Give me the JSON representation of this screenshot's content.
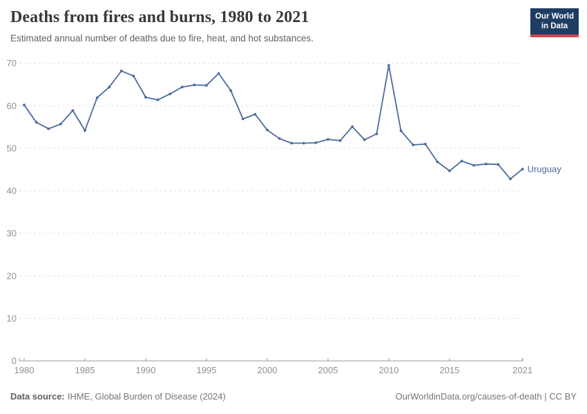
{
  "header": {
    "title": "Deaths from fires and burns, 1980 to 2021",
    "subtitle": "Estimated annual number of deaths due to fire, heat, and hot substances.",
    "logo": {
      "line1": "Our World",
      "line2": "in Data"
    }
  },
  "footer": {
    "source_label": "Data source:",
    "source_value": "IHME, Global Burden of Disease (2024)",
    "attribution": "OurWorldinData.org/causes-of-death | CC BY"
  },
  "colors": {
    "line": "#4c6a9c",
    "grid": "#e0e0e0",
    "axis": "#999999",
    "tick_label": "#8f8f8f",
    "logo_bg": "#1d3d63",
    "logo_accent": "#d8414a"
  },
  "chart_data": {
    "type": "line",
    "title": "Deaths from fires and burns, 1980 to 2021",
    "subtitle": "Estimated annual number of deaths due to fire, heat, and hot substances.",
    "xlabel": "",
    "ylabel": "",
    "xlim": [
      1980,
      2021
    ],
    "ylim": [
      0,
      70
    ],
    "x_ticks": [
      1980,
      1985,
      1990,
      1995,
      2000,
      2005,
      2010,
      2015,
      2021
    ],
    "y_ticks": [
      0,
      10,
      20,
      30,
      40,
      50,
      60,
      70
    ],
    "grid": "horizontal-dashed",
    "legend_position": "end-of-line-label",
    "series": [
      {
        "name": "Uruguay",
        "x": [
          1980,
          1981,
          1982,
          1983,
          1984,
          1985,
          1986,
          1987,
          1988,
          1989,
          1990,
          1991,
          1992,
          1993,
          1994,
          1995,
          1996,
          1997,
          1998,
          1999,
          2000,
          2001,
          2002,
          2003,
          2004,
          2005,
          2006,
          2007,
          2008,
          2009,
          2010,
          2011,
          2012,
          2013,
          2014,
          2015,
          2016,
          2017,
          2018,
          2019,
          2020,
          2021
        ],
        "values": [
          60.2,
          56.1,
          54.6,
          55.7,
          58.9,
          54.2,
          61.9,
          64.4,
          68.2,
          67.0,
          62.0,
          61.4,
          62.8,
          64.4,
          64.9,
          64.8,
          67.6,
          63.6,
          56.9,
          58.0,
          54.3,
          52.3,
          51.2,
          51.2,
          51.3,
          52.1,
          51.8,
          55.1,
          52.0,
          53.4,
          69.5,
          54.1,
          50.8,
          51.0,
          46.8,
          44.7,
          47.0,
          46.0,
          46.3,
          46.2,
          42.8,
          45.1
        ]
      }
    ]
  }
}
